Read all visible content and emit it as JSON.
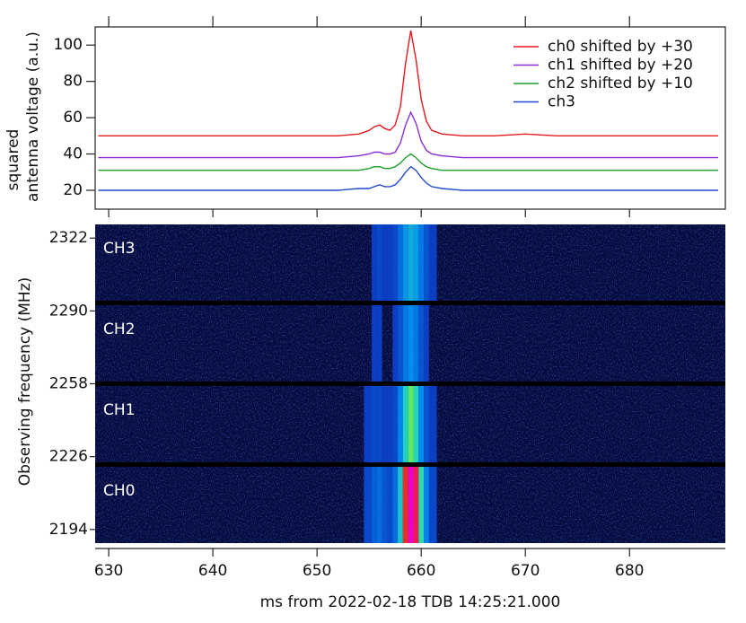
{
  "chart_data": [
    {
      "type": "line",
      "ylabel": [
        "squared",
        "antenna voltage (a.u.)"
      ],
      "x": [
        629,
        632,
        635,
        638,
        641,
        644,
        647,
        650,
        652,
        654,
        655,
        655.5,
        656,
        656.5,
        657,
        657.5,
        658,
        658.5,
        659,
        659.5,
        660,
        660.5,
        661,
        662,
        664,
        667,
        670,
        673,
        676,
        679,
        682,
        685,
        688.5
      ],
      "series": [
        {
          "name": "ch0 shifted by +30",
          "color": "#e6191e",
          "values": [
            50,
            50,
            50,
            50,
            50,
            50,
            50,
            50,
            50,
            51,
            53,
            55,
            56,
            54,
            53,
            56,
            66,
            90,
            108,
            92,
            70,
            58,
            53,
            51,
            50,
            50,
            51,
            50,
            50,
            50,
            50,
            50,
            50
          ]
        },
        {
          "name": "ch1 shifted by +20",
          "color": "#8a2fd6",
          "values": [
            38,
            38,
            38,
            38,
            38,
            38,
            38,
            38,
            38,
            39,
            40,
            41,
            41,
            40,
            40,
            41,
            46,
            56,
            63,
            57,
            47,
            42,
            40,
            39,
            38,
            38,
            38,
            38,
            38,
            38,
            38,
            38,
            38
          ]
        },
        {
          "name": "ch2 shifted by +10",
          "color": "#1f9e2a",
          "values": [
            31,
            31,
            31,
            31,
            31,
            31,
            31,
            31,
            31,
            31,
            32,
            33,
            33,
            32,
            32,
            33,
            35,
            38,
            40,
            38,
            35,
            33,
            32,
            31,
            31,
            31,
            31,
            31,
            31,
            31,
            31,
            31,
            31
          ]
        },
        {
          "name": "ch3",
          "color": "#2249d0",
          "values": [
            20,
            20,
            20,
            20,
            20,
            20,
            20,
            20,
            20,
            21,
            21,
            22,
            23,
            22,
            22,
            23,
            26,
            30,
            33,
            31,
            27,
            24,
            22,
            21,
            20,
            20,
            20,
            20,
            20,
            20,
            20,
            20,
            20
          ]
        }
      ],
      "xlim": [
        628.7,
        689.2
      ],
      "ylim": [
        9.6,
        110
      ],
      "yticks": [
        20,
        40,
        60,
        80,
        100
      ],
      "legend": "upper right"
    },
    {
      "type": "heatmap",
      "ylabel": "Observing frequency (MHz)",
      "xlabel": "ms from 2022-02-18 TDB 14:25:21.000",
      "channels": [
        "CH3",
        "CH2",
        "CH1",
        "CH0"
      ],
      "xlim": [
        628.7,
        689.2
      ],
      "xticks": [
        630,
        640,
        650,
        660,
        670,
        680
      ],
      "ylim": [
        2188,
        2328
      ],
      "yticks": [
        2194,
        2226,
        2258,
        2290,
        2322
      ]
    }
  ]
}
